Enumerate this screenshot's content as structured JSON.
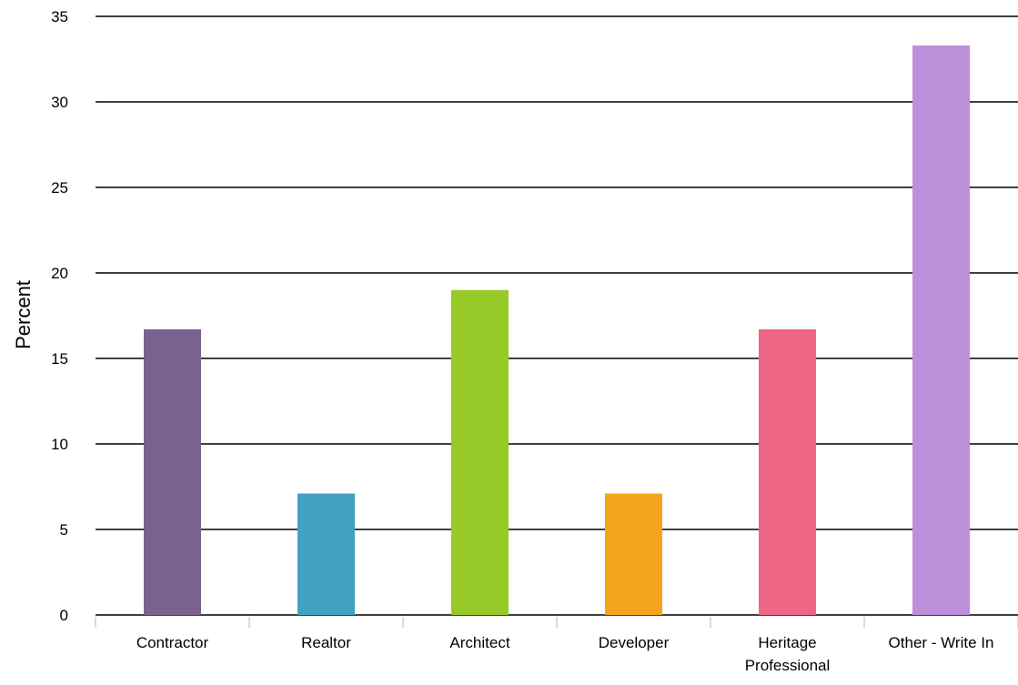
{
  "chart_data": {
    "type": "bar",
    "title": "",
    "xlabel": "",
    "ylabel": "Percent",
    "ylim": [
      0,
      35
    ],
    "yticks": [
      0,
      5,
      10,
      15,
      20,
      25,
      30,
      35
    ],
    "grid": true,
    "legend": "none",
    "categories": [
      [
        "Contractor"
      ],
      [
        "Realtor"
      ],
      [
        "Architect"
      ],
      [
        "Developer"
      ],
      [
        "Heritage",
        "Professional"
      ],
      [
        "Other - Write In"
      ]
    ],
    "values": [
      16.7,
      7.1,
      19.0,
      7.1,
      16.7,
      33.3
    ],
    "colors": [
      "#7b628e",
      "#41a2c0",
      "#97c928",
      "#f5a41d",
      "#ef6585",
      "#bd8fda"
    ]
  }
}
